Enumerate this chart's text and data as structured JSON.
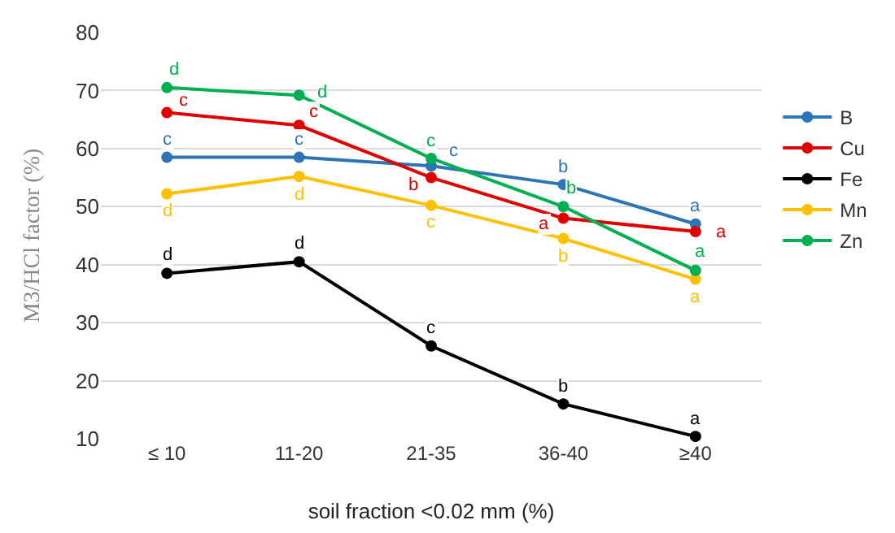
{
  "chart_data": {
    "type": "line",
    "xlabel": "soil fraction <0.02 mm (%)",
    "ylabel": "M3/HCl factor (%)",
    "categories": [
      "≤ 10",
      "11-20",
      "21-35",
      "36-40",
      "≥40"
    ],
    "series": [
      {
        "name": "B",
        "color": "#2e75b6",
        "values": [
          58.5,
          58.5,
          57,
          53.8,
          47
        ]
      },
      {
        "name": "Cu",
        "color": "#e00000",
        "values": [
          66.2,
          64,
          55,
          48,
          45.7
        ]
      },
      {
        "name": "Fe",
        "color": "#000000",
        "values": [
          38.5,
          40.5,
          26,
          16,
          10.4
        ]
      },
      {
        "name": "Mn",
        "color": "#ffc000",
        "values": [
          52.2,
          55.2,
          50.2,
          44.5,
          37.5
        ]
      },
      {
        "name": "Zn",
        "color": "#00b050",
        "values": [
          70.5,
          69.2,
          58.3,
          50,
          39
        ]
      }
    ],
    "ylim": [
      10,
      80
    ],
    "yticks": [
      10,
      20,
      30,
      40,
      50,
      60,
      70,
      80
    ],
    "grid": "y",
    "legend": "right",
    "marker": "circle",
    "line_style": "solid",
    "annotations": [
      {
        "text": "c",
        "x": "≤ 10",
        "y": 58.5
      },
      {
        "text": "c",
        "x": "11-20",
        "y": 58.5
      },
      {
        "text": "c",
        "x": "21-35",
        "y": 57
      },
      {
        "text": "b",
        "x": "36-40",
        "y": 53.8
      },
      {
        "text": "a",
        "x": "≥40",
        "y": 47
      },
      {
        "text": "c",
        "x": "≤ 10",
        "y": 66.2
      },
      {
        "text": "c",
        "x": "11-20",
        "y": 64
      },
      {
        "text": "b",
        "x": "21-35",
        "y": 55
      },
      {
        "text": "a",
        "x": "36-40",
        "y": 48
      },
      {
        "text": "a",
        "x": "≥40",
        "y": 45.7
      },
      {
        "text": "d",
        "x": "≤ 10",
        "y": 38.5
      },
      {
        "text": "d",
        "x": "11-20",
        "y": 40.5
      },
      {
        "text": "c",
        "x": "21-35",
        "y": 26
      },
      {
        "text": "b",
        "x": "36-40",
        "y": 16
      },
      {
        "text": "a",
        "x": "≥40",
        "y": 10.4
      },
      {
        "text": "d",
        "x": "≤ 10",
        "y": 52.2
      },
      {
        "text": "d",
        "x": "11-20",
        "y": 55.2
      },
      {
        "text": "c",
        "x": "21-35",
        "y": 50.2
      },
      {
        "text": "b",
        "x": "36-40",
        "y": 44.5
      },
      {
        "text": "a",
        "x": "≥40",
        "y": 37.5
      },
      {
        "text": "d",
        "x": "≤ 10",
        "y": 70.5
      },
      {
        "text": "d",
        "x": "11-20",
        "y": 69.2
      },
      {
        "text": "c",
        "x": "21-35",
        "y": 58.3
      },
      {
        "text": "b",
        "x": "36-40",
        "y": 50
      },
      {
        "text": "a",
        "x": "≥40",
        "y": 39
      }
    ]
  }
}
